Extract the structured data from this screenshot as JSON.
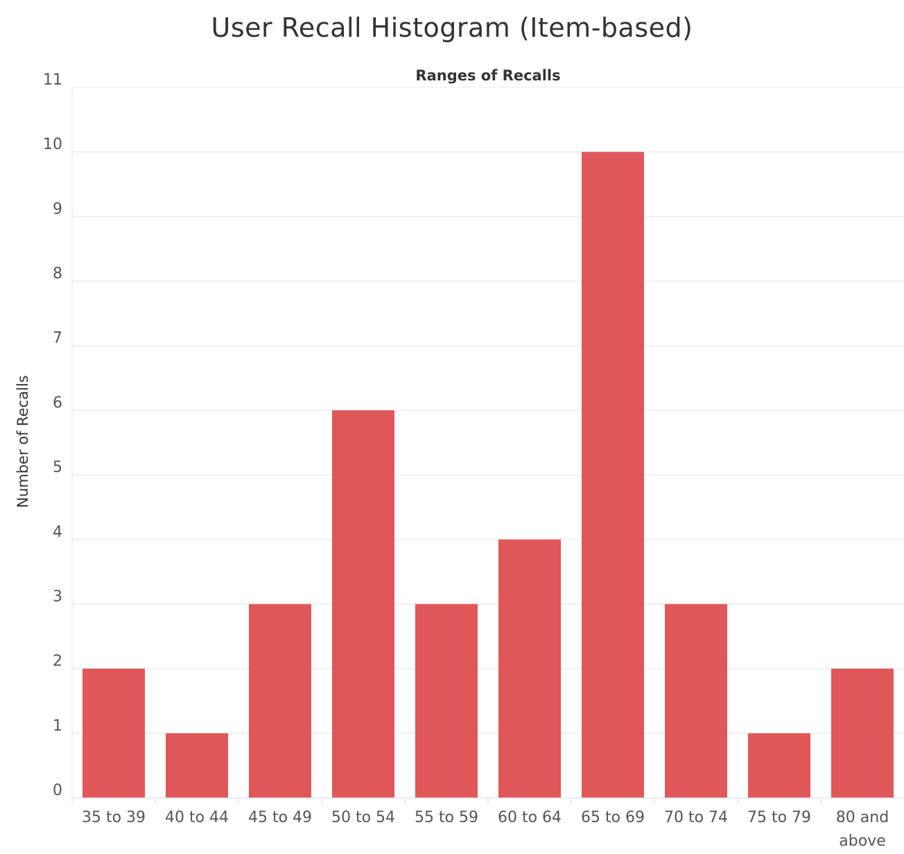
{
  "chart_data": {
    "type": "bar",
    "title": "User Recall Histogram (Item-based)",
    "column_header": "Ranges of Recalls",
    "xlabel": "",
    "ylabel": "Number of Recalls",
    "categories": [
      [
        "35 to 39"
      ],
      [
        "40 to 44"
      ],
      [
        "45 to 49"
      ],
      [
        "50 to 54"
      ],
      [
        "55 to 59"
      ],
      [
        "60 to 64"
      ],
      [
        "65 to 69"
      ],
      [
        "70 to 74"
      ],
      [
        "75 to 79"
      ],
      [
        "80 and",
        "above"
      ]
    ],
    "values": [
      2,
      1,
      3,
      6,
      3,
      4,
      10,
      3,
      1,
      2
    ],
    "ylim": [
      0,
      11
    ],
    "yticks": [
      "0",
      "1",
      "2",
      "3",
      "4",
      "5",
      "6",
      "7",
      "8",
      "9",
      "10",
      "11"
    ],
    "grid": true,
    "legend": "none",
    "bar_color": "#e05759",
    "grid_color": "#ebebeb"
  }
}
